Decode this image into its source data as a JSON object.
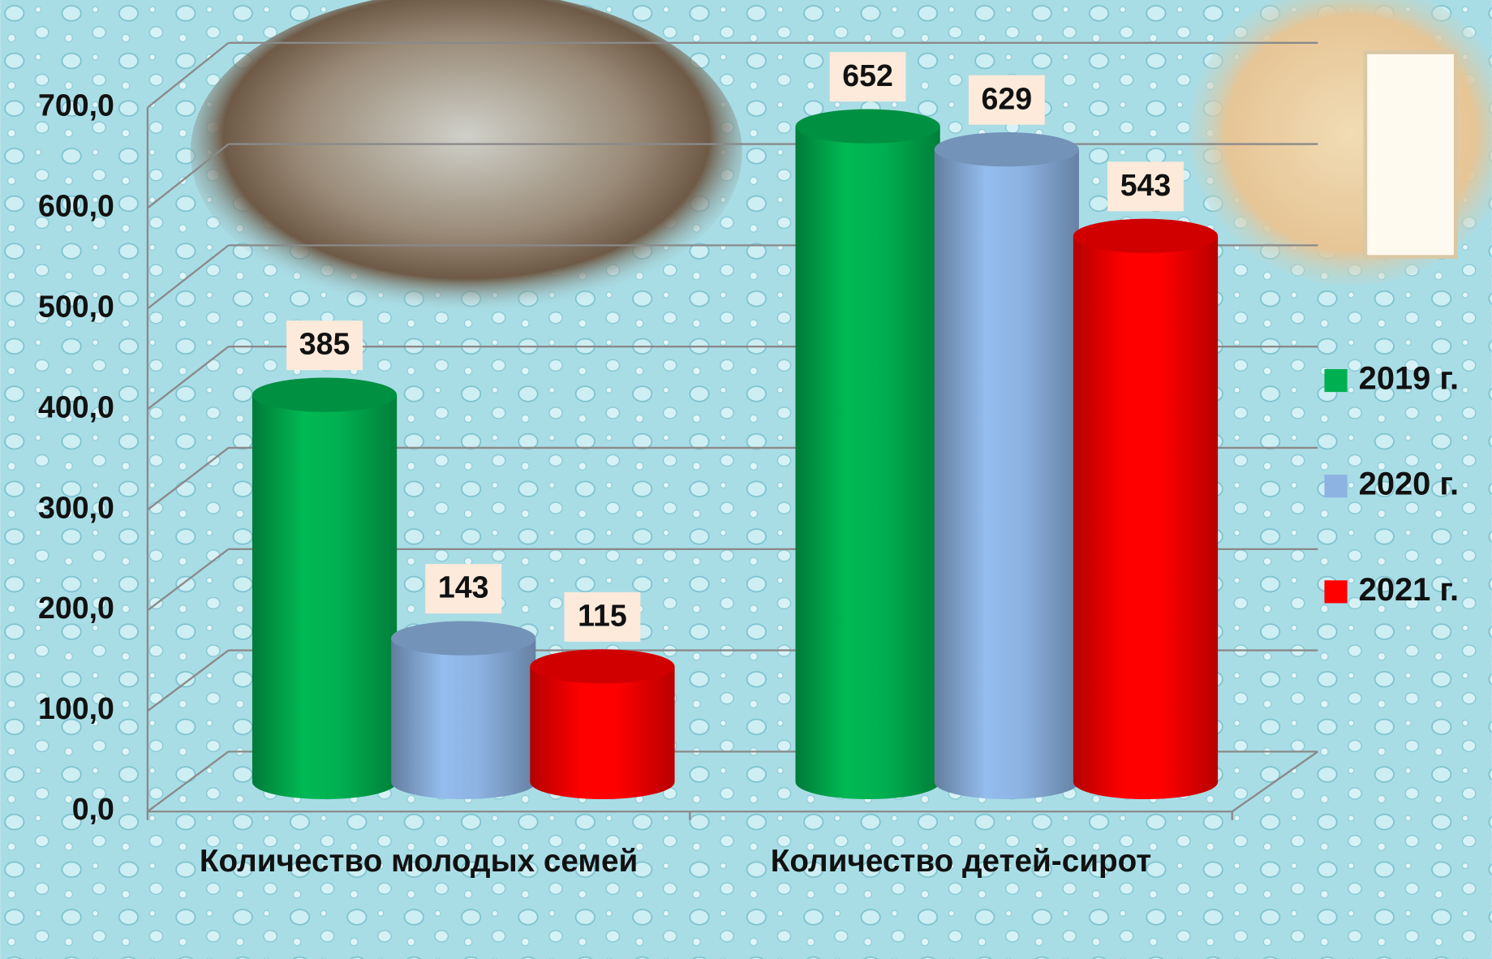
{
  "chart_data": {
    "type": "bar3d",
    "categories": [
      "Количество молодых семей",
      "Количество детей-сирот"
    ],
    "series": [
      {
        "name": "2019 г.",
        "color": "#00b050",
        "values": [
          385,
          652
        ]
      },
      {
        "name": "2020 г.",
        "color": "#8db3e2",
        "values": [
          143,
          629
        ]
      },
      {
        "name": "2021 г.",
        "color": "#ff0000",
        "values": [
          115,
          543
        ]
      }
    ],
    "ylim": [
      0,
      700
    ],
    "yticks": [
      {
        "value": 0,
        "label": "0,0"
      },
      {
        "value": 100,
        "label": "100,0"
      },
      {
        "value": 200,
        "label": "200,0"
      },
      {
        "value": 300,
        "label": "300,0"
      },
      {
        "value": 400,
        "label": "400,0"
      },
      {
        "value": 500,
        "label": "500,0"
      },
      {
        "value": 600,
        "label": "600,0"
      },
      {
        "value": 700,
        "label": "700,0"
      }
    ],
    "grid": true,
    "legend": "right"
  }
}
